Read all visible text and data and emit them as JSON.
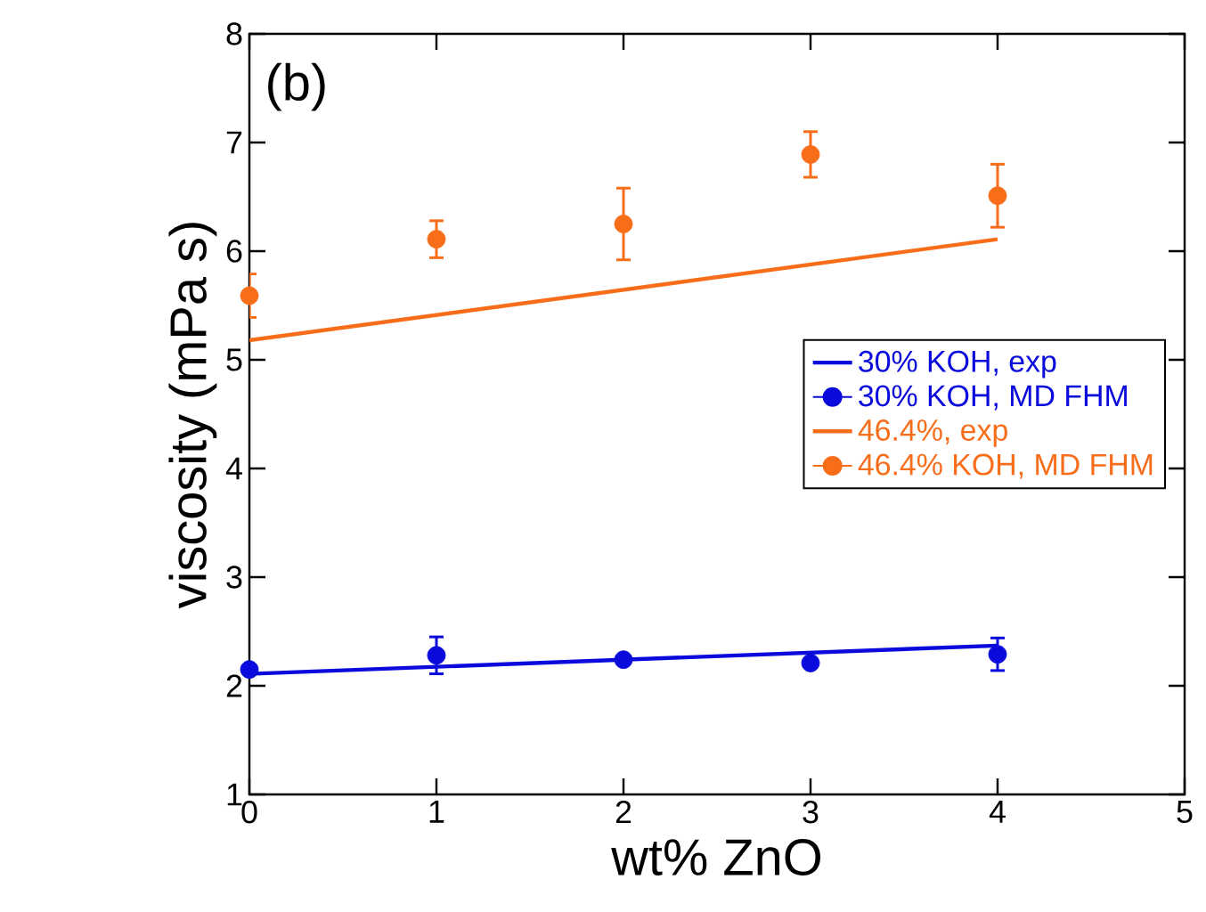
{
  "chart_data": {
    "type": "scatter",
    "xlabel": "wt% ZnO",
    "ylabel": "viscosity (mPa s)",
    "annotations": [
      "(b)"
    ],
    "xlim": [
      0,
      5
    ],
    "ylim": [
      1,
      8
    ],
    "xticks": [
      0,
      1,
      2,
      3,
      4,
      5
    ],
    "yticks": [
      1,
      2,
      3,
      4,
      5,
      6,
      7,
      8
    ],
    "grid": false,
    "legend": "right",
    "series": [
      {
        "name": "30% KOH, exp",
        "type": "line",
        "marker": "none",
        "color": "#0a0adc",
        "x": [
          0,
          4
        ],
        "values": [
          2.11,
          2.37
        ]
      },
      {
        "name": "30% KOH, MD FHM",
        "marker": "circle",
        "color": "#0a0adc",
        "x": [
          0,
          1,
          2,
          3,
          4
        ],
        "values": [
          2.15,
          2.28,
          2.24,
          2.21,
          2.29
        ],
        "errors": [
          null,
          0.17,
          null,
          null,
          0.15
        ]
      },
      {
        "name": "46.4%, exp",
        "type": "line",
        "marker": "none",
        "color": "#f86d1a",
        "x": [
          0,
          4
        ],
        "values": [
          5.18,
          6.11
        ]
      },
      {
        "name": "46.4% KOH, MD FHM",
        "marker": "circle",
        "color": "#f86d1a",
        "x": [
          0,
          1,
          2,
          3,
          4
        ],
        "values": [
          5.59,
          6.11,
          6.25,
          6.89,
          6.51
        ],
        "errors": [
          0.2,
          0.17,
          0.33,
          0.21,
          0.29
        ]
      }
    ]
  }
}
